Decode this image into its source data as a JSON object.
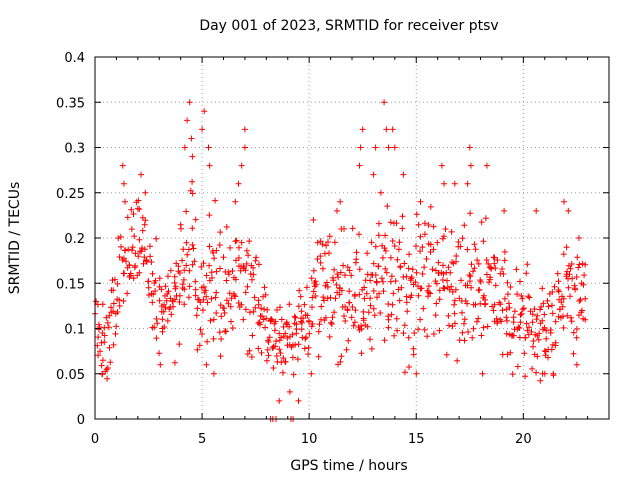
{
  "chart_data": {
    "type": "scatter",
    "title": "Day 001 of 2023, SRMTID for receiver ptsv",
    "xlabel": "GPS time / hours",
    "ylabel": "SRMTID / TECUs",
    "xlim": [
      0,
      24
    ],
    "ylim": [
      0,
      0.4
    ],
    "xticks": [
      0,
      5,
      10,
      15,
      20
    ],
    "xtick_labels": [
      "0",
      "5",
      "10",
      "15",
      "20"
    ],
    "yticks": [
      0,
      0.05,
      0.1,
      0.15,
      0.2,
      0.25,
      0.3,
      0.35,
      0.4
    ],
    "ytick_labels": [
      "0",
      "0.05",
      "0.1",
      "0.15",
      "0.2",
      "0.25",
      "0.3",
      "0.35",
      "0.4"
    ],
    "grid": true,
    "marker": "+",
    "color": "#ff0000",
    "series": [
      {
        "name": "SRMTID",
        "profile": [
          [
            0.0,
            0.11
          ],
          [
            0.3,
            0.08
          ],
          [
            0.6,
            0.085
          ],
          [
            1.0,
            0.13
          ],
          [
            1.3,
            0.19
          ],
          [
            1.6,
            0.18
          ],
          [
            2.0,
            0.2
          ],
          [
            2.3,
            0.19
          ],
          [
            2.6,
            0.16
          ],
          [
            3.0,
            0.12
          ],
          [
            3.5,
            0.12
          ],
          [
            4.0,
            0.15
          ],
          [
            4.4,
            0.2
          ],
          [
            5.0,
            0.14
          ],
          [
            5.4,
            0.17
          ],
          [
            6.0,
            0.13
          ],
          [
            6.5,
            0.14
          ],
          [
            6.9,
            0.18
          ],
          [
            7.3,
            0.13
          ],
          [
            7.8,
            0.12
          ],
          [
            8.3,
            0.09
          ],
          [
            8.8,
            0.08
          ],
          [
            9.3,
            0.09
          ],
          [
            9.8,
            0.09
          ],
          [
            10.2,
            0.13
          ],
          [
            10.8,
            0.15
          ],
          [
            11.5,
            0.13
          ],
          [
            12.0,
            0.15
          ],
          [
            12.5,
            0.13
          ],
          [
            13.0,
            0.14
          ],
          [
            13.5,
            0.17
          ],
          [
            14.0,
            0.16
          ],
          [
            14.5,
            0.14
          ],
          [
            15.0,
            0.15
          ],
          [
            15.5,
            0.17
          ],
          [
            16.0,
            0.16
          ],
          [
            16.5,
            0.15
          ],
          [
            17.0,
            0.14
          ],
          [
            17.5,
            0.16
          ],
          [
            18.0,
            0.15
          ],
          [
            18.5,
            0.14
          ],
          [
            19.0,
            0.13
          ],
          [
            19.5,
            0.11
          ],
          [
            20.0,
            0.11
          ],
          [
            20.5,
            0.1
          ],
          [
            21.0,
            0.1
          ],
          [
            21.5,
            0.12
          ],
          [
            22.0,
            0.15
          ],
          [
            22.3,
            0.14
          ],
          [
            22.8,
            0.14
          ]
        ],
        "spread_profile": [
          [
            0.0,
            0.03
          ],
          [
            1.5,
            0.05
          ],
          [
            2.5,
            0.05
          ],
          [
            3.5,
            0.04
          ],
          [
            4.5,
            0.07
          ],
          [
            5.5,
            0.06
          ],
          [
            7.0,
            0.06
          ],
          [
            8.5,
            0.04
          ],
          [
            10.0,
            0.05
          ],
          [
            12.0,
            0.06
          ],
          [
            13.5,
            0.07
          ],
          [
            15.5,
            0.06
          ],
          [
            17.5,
            0.06
          ],
          [
            19.5,
            0.05
          ],
          [
            21.0,
            0.05
          ],
          [
            22.8,
            0.05
          ]
        ],
        "peaks": [
          [
            0.05,
            0.13
          ],
          [
            0.35,
            0.05
          ],
          [
            1.3,
            0.28
          ],
          [
            1.35,
            0.26
          ],
          [
            1.4,
            0.24
          ],
          [
            2.15,
            0.27
          ],
          [
            2.35,
            0.25
          ],
          [
            3.05,
            0.06
          ],
          [
            3.15,
            0.1
          ],
          [
            4.2,
            0.3
          ],
          [
            4.3,
            0.33
          ],
          [
            4.42,
            0.35
          ],
          [
            4.5,
            0.31
          ],
          [
            4.55,
            0.29
          ],
          [
            5.1,
            0.34
          ],
          [
            5.0,
            0.32
          ],
          [
            5.3,
            0.3
          ],
          [
            5.35,
            0.28
          ],
          [
            5.2,
            0.06
          ],
          [
            5.55,
            0.05
          ],
          [
            6.7,
            0.26
          ],
          [
            6.85,
            0.28
          ],
          [
            7.0,
            0.32
          ],
          [
            6.55,
            0.24
          ],
          [
            7.0,
            0.3
          ],
          [
            8.6,
            0.02
          ],
          [
            9.1,
            0.03
          ],
          [
            9.5,
            0.02
          ],
          [
            10.1,
            0.05
          ],
          [
            10.2,
            0.22
          ],
          [
            11.3,
            0.23
          ],
          [
            11.45,
            0.24
          ],
          [
            12.4,
            0.3
          ],
          [
            12.5,
            0.32
          ],
          [
            12.35,
            0.28
          ],
          [
            13.1,
            0.3
          ],
          [
            13.5,
            0.35
          ],
          [
            13.6,
            0.32
          ],
          [
            13.7,
            0.3
          ],
          [
            13.9,
            0.32
          ],
          [
            14.0,
            0.3
          ],
          [
            14.4,
            0.27
          ],
          [
            15.0,
            0.05
          ],
          [
            15.2,
            0.24
          ],
          [
            16.2,
            0.28
          ],
          [
            16.3,
            0.26
          ],
          [
            16.8,
            0.26
          ],
          [
            17.5,
            0.3
          ],
          [
            17.55,
            0.28
          ],
          [
            17.4,
            0.26
          ],
          [
            18.3,
            0.28
          ],
          [
            18.1,
            0.05
          ],
          [
            19.1,
            0.23
          ],
          [
            20.6,
            0.23
          ],
          [
            20.9,
            0.05
          ],
          [
            21.0,
            0.05
          ],
          [
            21.4,
            0.05
          ],
          [
            21.9,
            0.24
          ],
          [
            22.1,
            0.23
          ],
          [
            22.5,
            0.06
          ],
          [
            22.6,
            0.2
          ],
          [
            13.35,
            0.25
          ],
          [
            13.0,
            0.27
          ],
          [
            11.5,
            0.21
          ]
        ],
        "axis_markers_x": [
          8.2,
          8.3,
          8.45,
          9.15,
          9.25
        ],
        "x_start": 0.0,
        "x_end": 22.9,
        "x_step": 0.1,
        "points_per_step": 4
      }
    ]
  }
}
